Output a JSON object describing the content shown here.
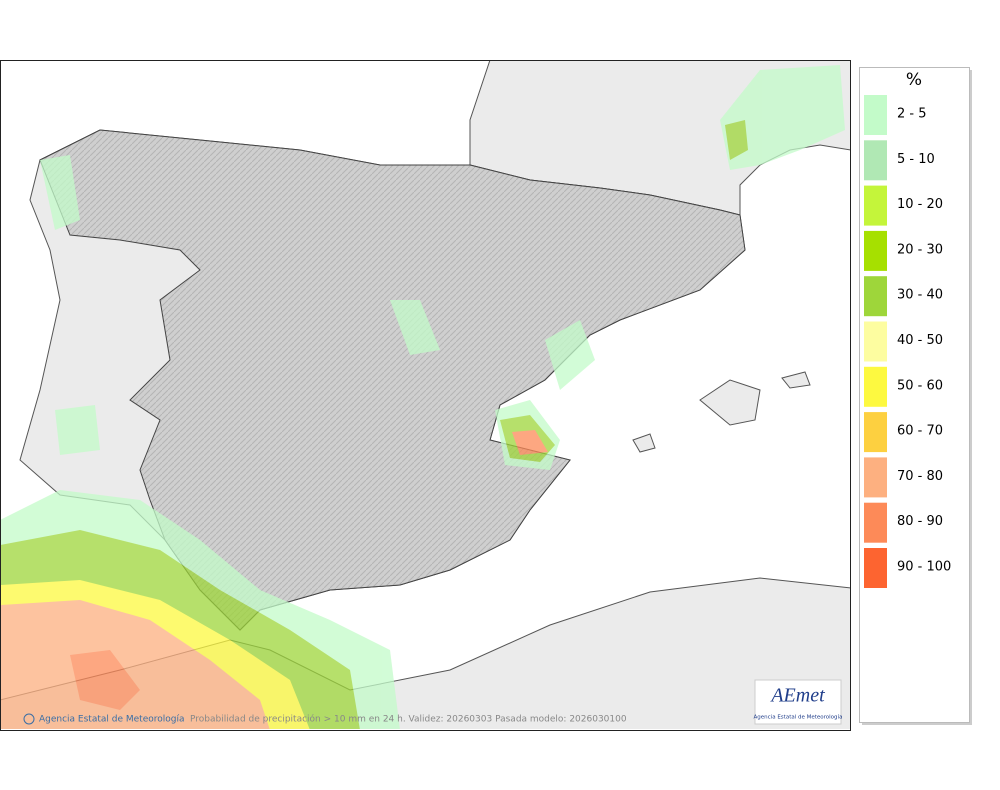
{
  "legend": {
    "title": "%",
    "items": [
      {
        "label": "2 - 5",
        "color": "#c3fbc9"
      },
      {
        "label": "5 - 10",
        "color": "#b0e8b4"
      },
      {
        "label": "10 - 20",
        "color": "#c4f53a"
      },
      {
        "label": "20 - 30",
        "color": "#a6e000"
      },
      {
        "label": "30 - 40",
        "color": "#9ed63a"
      },
      {
        "label": "40 - 50",
        "color": "#fdfda0"
      },
      {
        "label": "50 - 60",
        "color": "#fdf940"
      },
      {
        "label": "60 - 70",
        "color": "#fdd040"
      },
      {
        "label": "70 - 80",
        "color": "#fdb080"
      },
      {
        "label": "80 - 90",
        "color": "#fd8a58"
      },
      {
        "label": "90 - 100",
        "color": "#fd6430"
      }
    ]
  },
  "footer": {
    "credit": "Agencia Estatal de Meteorología",
    "caption": "Probabilidad de precipitación > 10 mm en 24 h. Validez: 20260303 Pasada modelo: 2026030100"
  },
  "logo": {
    "name": "AEmet",
    "subtitle": "Agencia Estatal de Meteorología"
  }
}
